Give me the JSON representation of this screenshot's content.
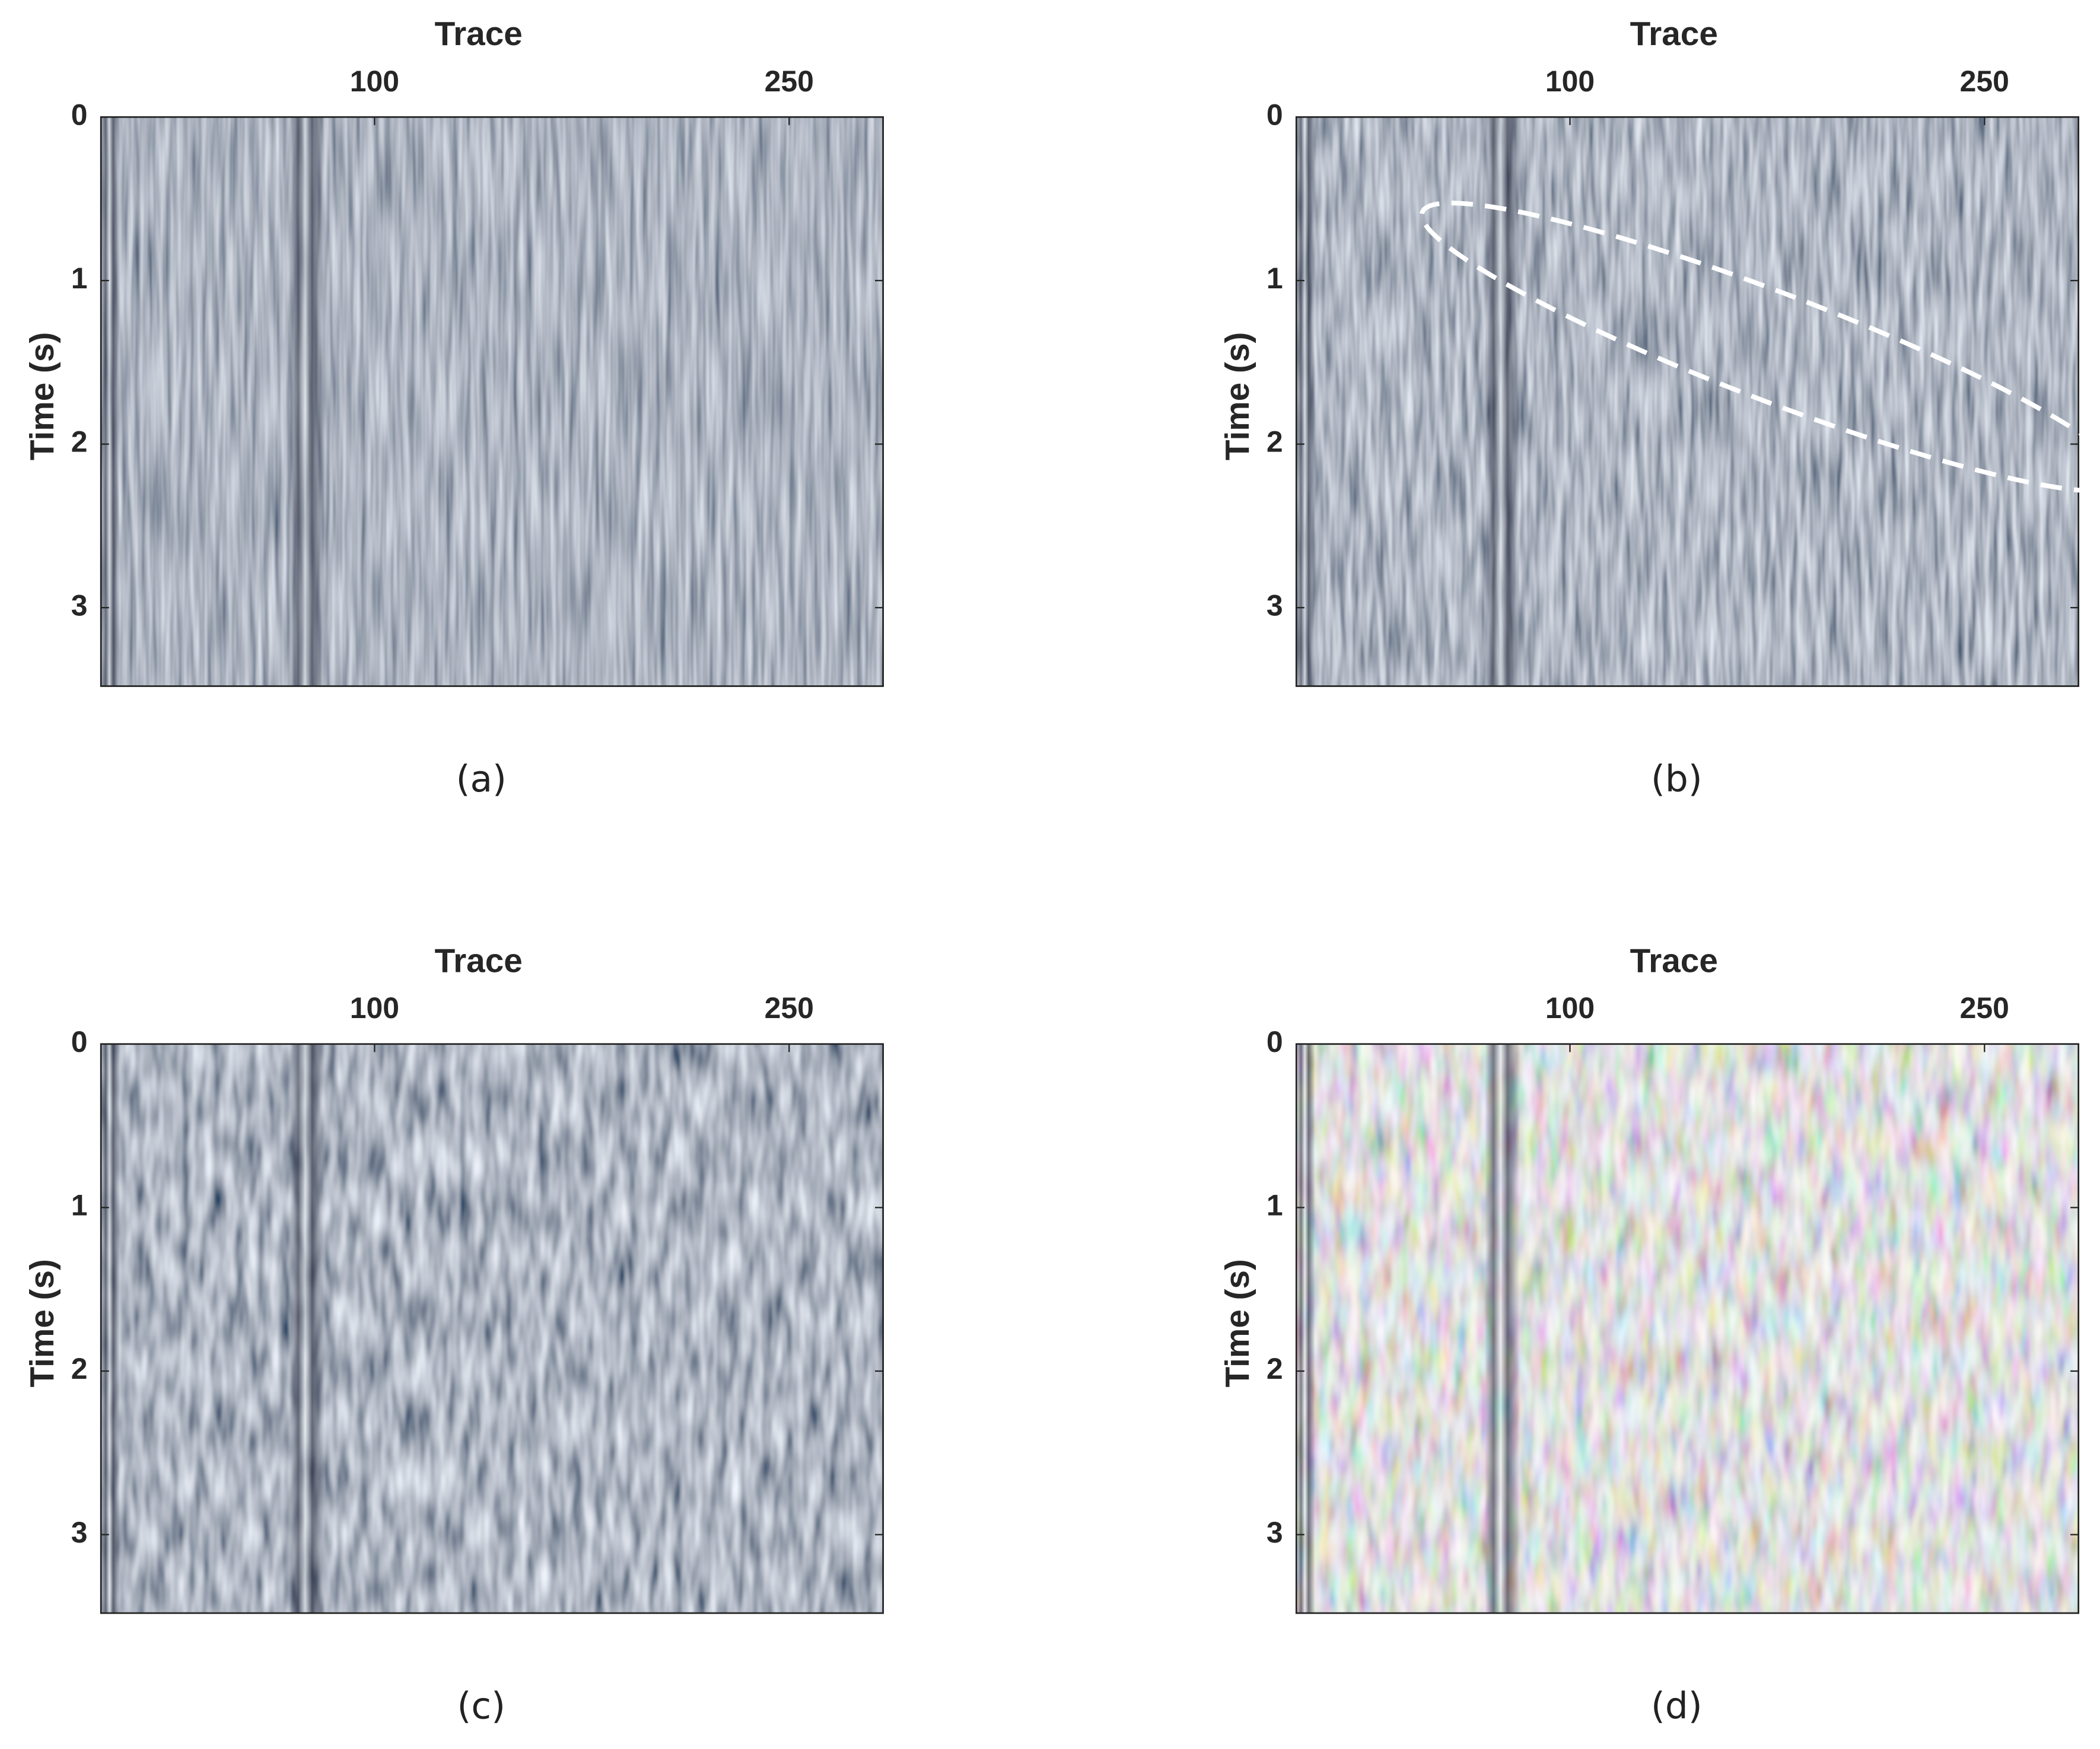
{
  "chart_data": [
    {
      "type": "heatmap",
      "title": "Trace",
      "ylabel": "Time (s)",
      "caption": "(a)",
      "xlim": [
        1,
        284
      ],
      "ylim": [
        0,
        3.48
      ],
      "xticks": [
        100,
        250
      ],
      "yticks": [
        0,
        1,
        2,
        3
      ],
      "yreverse": true
    },
    {
      "type": "heatmap",
      "title": "Trace",
      "ylabel": "Time (s)",
      "caption": "(b)",
      "xlim": [
        1,
        284
      ],
      "ylim": [
        0,
        3.48
      ],
      "xticks": [
        100,
        250
      ],
      "yticks": [
        0,
        1,
        2,
        3
      ],
      "yreverse": true
    },
    {
      "type": "heatmap",
      "title": "Trace",
      "ylabel": "Time (s)",
      "caption": "(c)",
      "xlim": [
        1,
        284
      ],
      "ylim": [
        0,
        3.48
      ],
      "xticks": [
        100,
        250
      ],
      "yticks": [
        0,
        1,
        2,
        3
      ],
      "yreverse": true
    },
    {
      "type": "heatmap",
      "title": "Trace",
      "ylabel": "Time (s)",
      "caption": "(d)",
      "xlim": [
        1,
        284
      ],
      "ylim": [
        0,
        3.48
      ],
      "xticks": [
        100,
        250
      ],
      "yticks": [
        0,
        1,
        2,
        3
      ],
      "yreverse": true
    }
  ]
}
